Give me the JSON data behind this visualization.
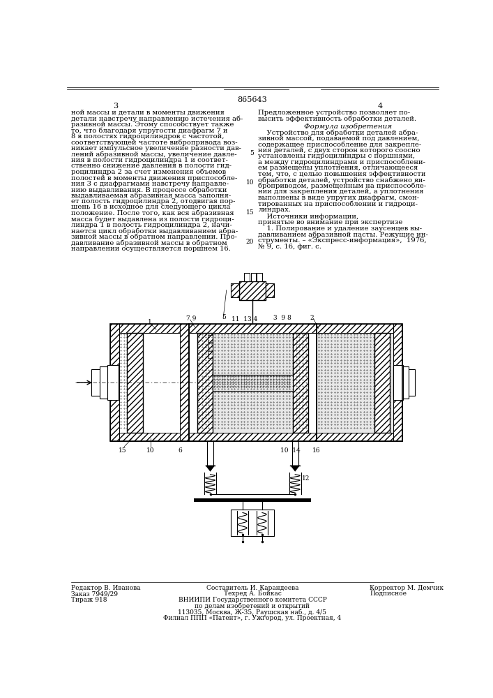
{
  "page_number_center": "865643",
  "page_left": "3",
  "page_right": "4",
  "background_color": "#ffffff",
  "text_color": "#000000",
  "col_left_text": [
    "ной массы и детали в моменты движения",
    "детали навстречу направлению истечения аб-",
    "разивной массы. Этому способствует также",
    "то, что благодаря упругости диафрагм 7 и",
    "8 в полостях гидроцилиндров с частотой,",
    "соответствующей частоте вибропривода воз-",
    "никает импульсное увеличение разности дав-",
    "лений абразивной массы, увеличение давле-",
    "ния в полости гидроцилиндра 1 и соответ-",
    "ственно снижение давления в полости гид-",
    "роцилиндра 2 за счет изменения объемов",
    "полостей в моменты движения приспособле-",
    "ния 3 с диафрагмами навстречу направле-",
    "нию выдавливания. В процессе обработки",
    "выдавливаемая абразивная масса заполня-",
    "ет полость гидроцилиндра 2, отодвигая пор-",
    "шень 16 в исходное для следующего цикла",
    "положение. После того, как вся абразивная",
    "масса будет выдавлена из полости гидроци-",
    "линдра 1 в полость гидроцилиндра 2, начи-",
    "нается цикл обработки выдавливанием абра-",
    "зивной массы в обратном направлении. Про-",
    "давливание абразивной массы в обратном",
    "направлении осуществляется поршнем 16."
  ],
  "col_right_text_top": [
    "Предложенное устройство позволяет по-",
    "высить эффективность обработки деталей."
  ],
  "formula_header": "Формула изобретения",
  "col_right_body": [
    "    Устройство для обработки деталей абра-",
    "зивной массой, подаваемой под давлением,",
    "содержащее приспособление для закрепле-",
    "ния деталей, с двух сторон которого соосно",
    "установлены гидроцилиндры с поршнями,",
    "а между гидроцилиндрами и приспособлени-",
    "ем размещены уплотнения, отличающееся",
    "тем, что, с целью повышения эффективности",
    "обработки деталей, устройство снабжено ви-",
    "броприводом, размещенным на приспособле-",
    "нии для закрепления деталей, а уплотнения",
    "выполнены в виде упругих диафрагм, смон-",
    "тированных на приспособлении и гидроци-",
    "линдрах."
  ],
  "sources_header": "    Источники информации,",
  "sources_subheader": "принятые во внимание при экспертизе",
  "sources_body": [
    "    1. Полирование и удаление заусенцев вы-",
    "давливанием абразивной пасты. Режущие ин-",
    "струменты. – «Экспресс-информация»,  1976,",
    "№ 9, с. 16, фиг. с."
  ],
  "footer_left": "Редактор В. Иванова",
  "footer_order": "Заказ 7949/29",
  "footer_tirazh": "Тираж 918",
  "footer_composer": "Составитель И. Карандеева",
  "footer_tech": "Техред А. Бойкас",
  "footer_corrector": "Корректор М. Демчик",
  "footer_podp": "Подписное",
  "footer_vniiipi": "ВНИИПИ Государственного комитета СССР",
  "footer_by": "по делам изобретений и открытий",
  "footer_addr": "113035, Москва, Ж-35, Раушская наб., д. 4/5",
  "footer_filial": "Филиал ППП «Патент», г. Ужгород, ул. Проектная, 4"
}
